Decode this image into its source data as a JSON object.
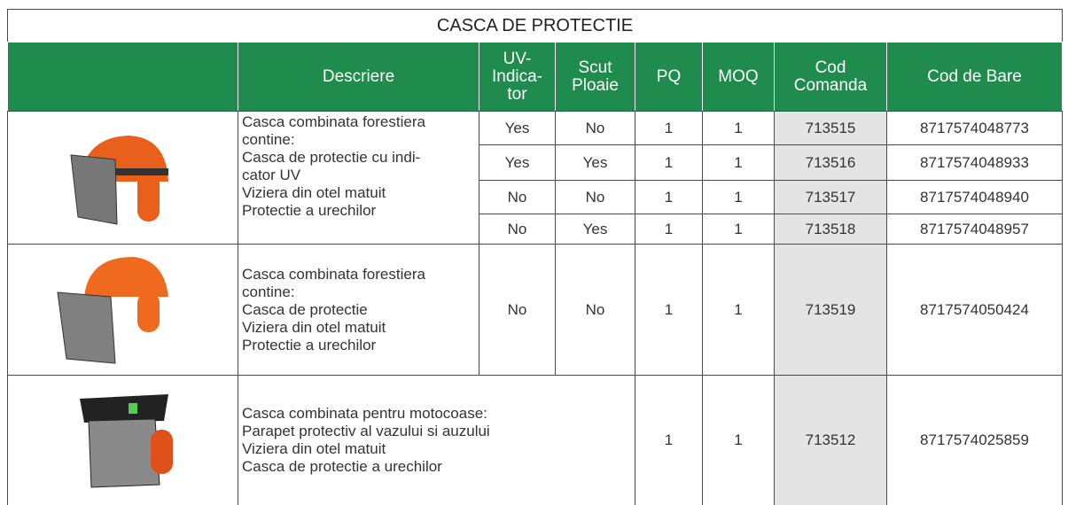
{
  "title": "CASCA DE PROTECTIE",
  "headers": {
    "descriere": [
      "Descriere"
    ],
    "uv": [
      "UV-",
      "Indica-",
      "tor"
    ],
    "scut": [
      "Scut",
      "Ploaie"
    ],
    "pq": [
      "PQ"
    ],
    "moq": [
      "MOQ"
    ],
    "cod": [
      "Cod",
      "Comanda"
    ],
    "bare": [
      "Cod de Bare"
    ]
  },
  "groups": [
    {
      "description": [
        "Casca combinata forestiera",
        "contine:",
        "Casca de protectie cu indi-",
        "cator UV",
        "Viziera din otel matuit",
        "Protectie a urechilor"
      ],
      "rows": [
        {
          "uv": "Yes",
          "scut": "No",
          "pq": "1",
          "moq": "1",
          "cod": "713515",
          "bare": "8717574048773"
        },
        {
          "uv": "Yes",
          "scut": "Yes",
          "pq": "1",
          "moq": "1",
          "cod": "713516",
          "bare": "8717574048933"
        },
        {
          "uv": "No",
          "scut": "No",
          "pq": "1",
          "moq": "1",
          "cod": "713517",
          "bare": "8717574048940"
        },
        {
          "uv": "No",
          "scut": "Yes",
          "pq": "1",
          "moq": "1",
          "cod": "713518",
          "bare": "8717574048957"
        }
      ]
    },
    {
      "description": [
        "Casca combinata forestiera",
        "contine:",
        "Casca de protectie",
        "Viziera din otel matuit",
        "Protectie a urechilor"
      ],
      "rows": [
        {
          "uv": "No",
          "scut": "No",
          "pq": "1",
          "moq": "1",
          "cod": "713519",
          "bare": "8717574050424"
        }
      ]
    },
    {
      "description": [
        "Casca combinata pentru motocoase:",
        "Parapet protectiv al vazului si auzului",
        "Viziera din otel matuit",
        "Casca de protectie a urechilor"
      ],
      "rows": [
        {
          "pq": "1",
          "moq": "1",
          "cod": "713512",
          "bare": "8717574025859"
        }
      ]
    }
  ]
}
